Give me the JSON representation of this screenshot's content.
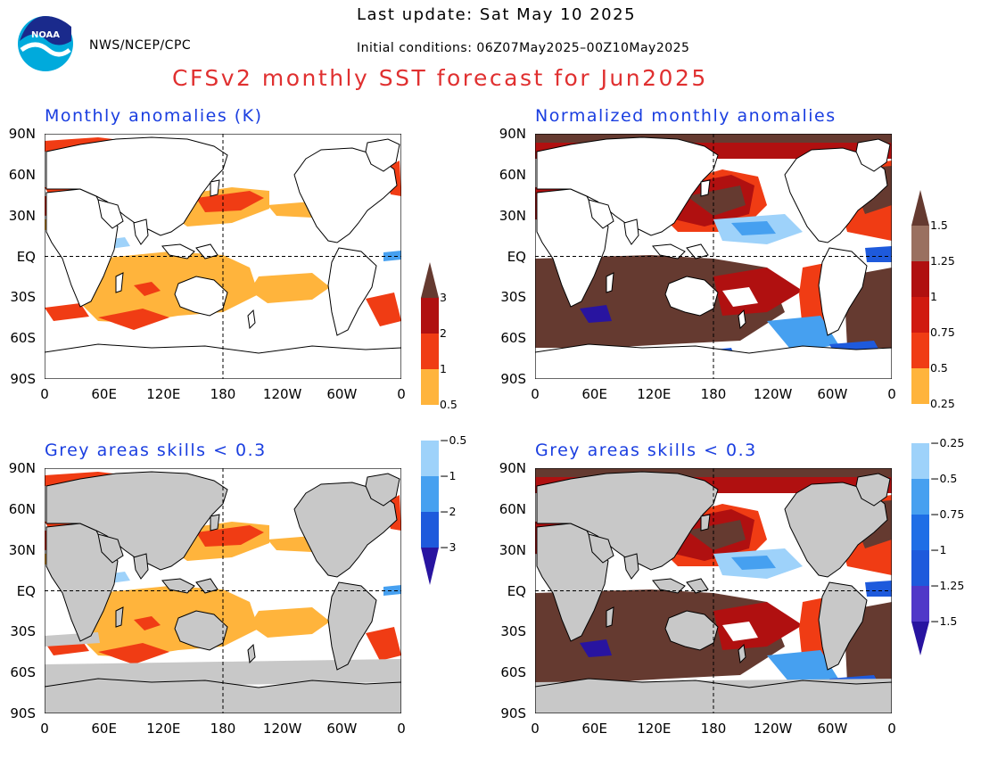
{
  "header": {
    "org": "NWS/NCEP/CPC",
    "last_update": "Last update: Sat May 10 2025",
    "initial_conditions": "Initial conditions: 06Z07May2025–00Z10May2025",
    "main_title": "CFSv2 monthly SST forecast for Jun2025"
  },
  "colors": {
    "title_red": "#e03030",
    "panel_title_blue": "#1a3ee0",
    "grey_mask": "#c8c8c8"
  },
  "panels": [
    {
      "title": "Monthly anomalies (K)"
    },
    {
      "title": "Normalized monthly anomalies"
    },
    {
      "title": "Grey areas skills < 0.3"
    },
    {
      "title": "Grey areas skills < 0.3"
    }
  ],
  "axes": {
    "lat_labels": [
      "90N",
      "60N",
      "30N",
      "EQ",
      "30S",
      "60S",
      "90S"
    ],
    "lon_labels": [
      "0",
      "60E",
      "120E",
      "180",
      "120W",
      "60W",
      "0"
    ]
  },
  "colorbars": {
    "anomaly": [
      "3",
      "2",
      "1",
      "0.5",
      "−0.5",
      "−1",
      "−2",
      "−3"
    ],
    "normalized": [
      "1.5",
      "1.25",
      "1",
      "0.75",
      "0.5",
      "0.25",
      "−0.25",
      "−0.5",
      "−0.75",
      "−1",
      "−1.25",
      "−1.5"
    ],
    "color_steps": [
      "#653a30",
      "#b01010",
      "#f03c14",
      "#ffb43c",
      "#ffffff",
      "#9ed2fa",
      "#46a0f0",
      "#1e5adc",
      "#2814a0"
    ]
  }
}
